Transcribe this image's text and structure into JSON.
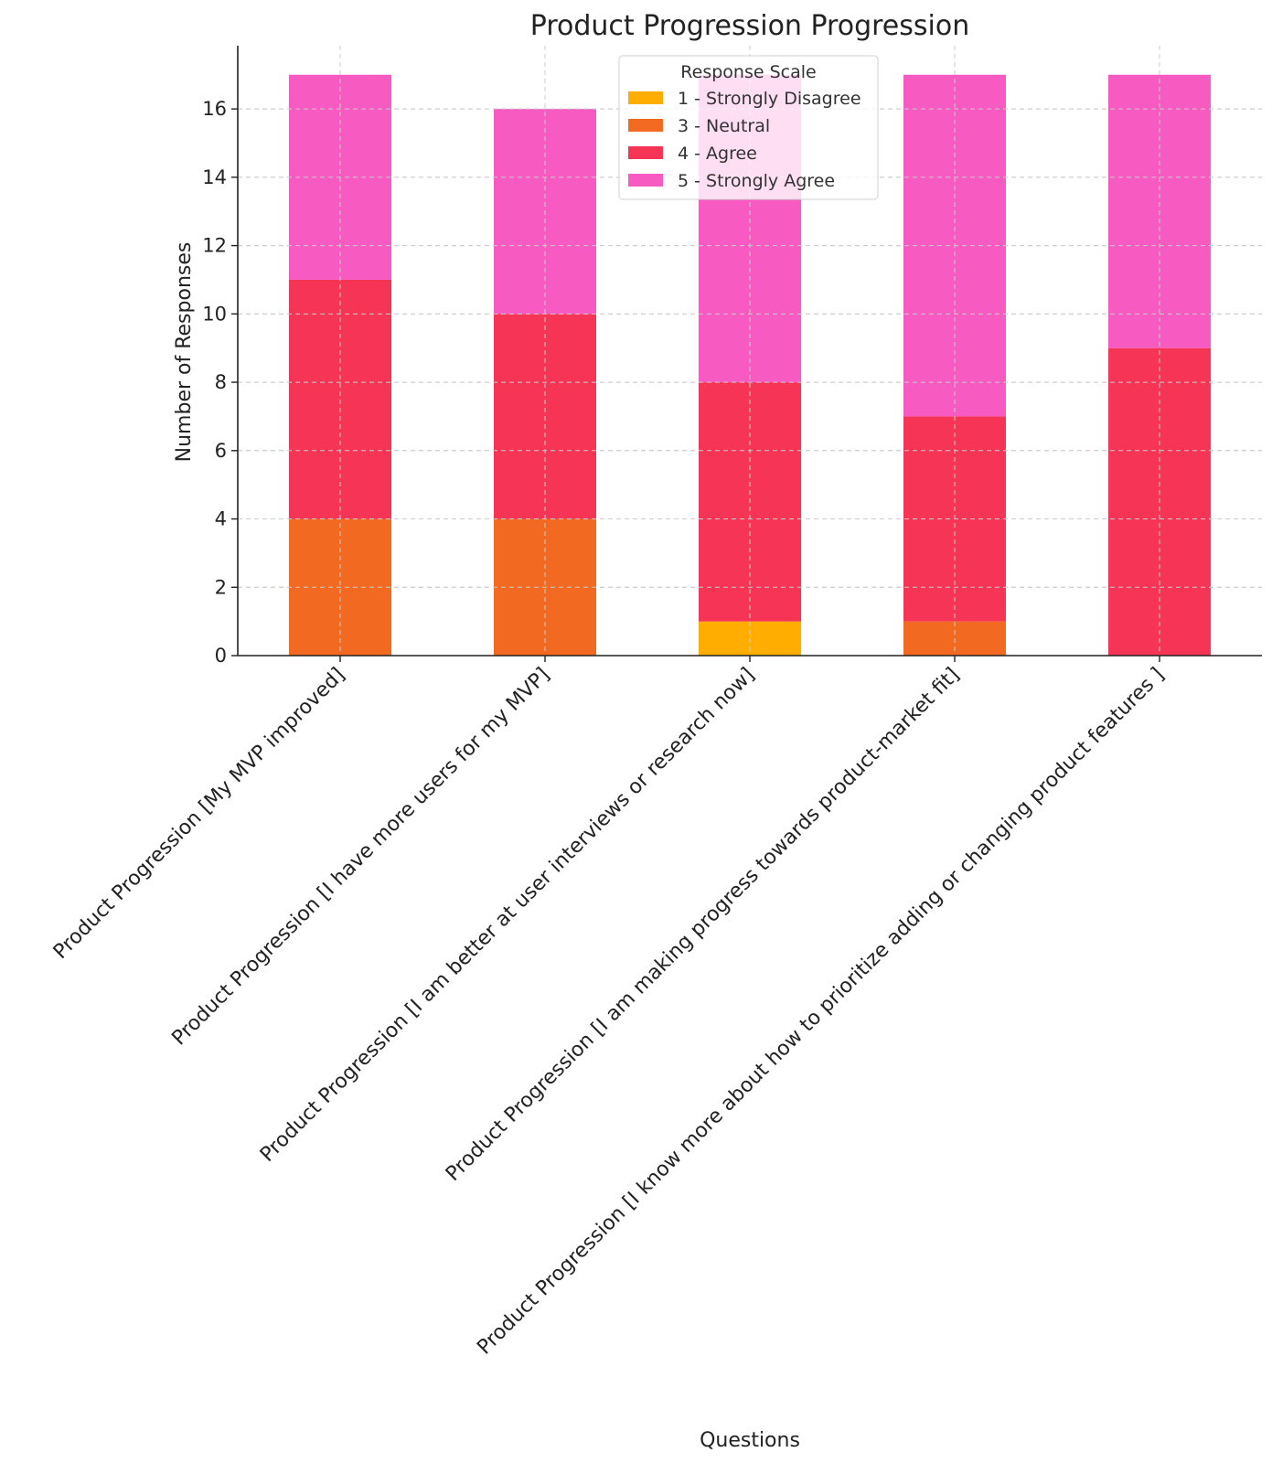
{
  "chart_data": {
    "type": "bar",
    "stacked": true,
    "title": "Product Progression Progression",
    "xlabel": "Questions",
    "ylabel": "Number of Responses",
    "ylim": [
      0,
      17.85
    ],
    "yticks": [
      0,
      2,
      4,
      6,
      8,
      10,
      12,
      14,
      16
    ],
    "grid": true,
    "legend": {
      "title": "Response Scale",
      "placement": "top-center"
    },
    "categories": [
      "Product Progression [My MVP improved]",
      "Product Progression [I have more users for my MVP]",
      "Product Progression [I am better at user interviews or research now]",
      "Product Progression [I am making progress towards product-market fit]",
      "Product Progression [I know more about how to prioritize adding or changing product features ]"
    ],
    "series": [
      {
        "name": "1 - Strongly Disagree",
        "color": "#FFAE00",
        "values": [
          0,
          0,
          1,
          0,
          0
        ]
      },
      {
        "name": "3 - Neutral",
        "color": "#F26A22",
        "values": [
          4,
          4,
          0,
          1,
          0
        ]
      },
      {
        "name": "4 - Agree",
        "color": "#F53456",
        "values": [
          7,
          6,
          7,
          6,
          9
        ]
      },
      {
        "name": "5 - Strongly Agree",
        "color": "#F75AC0",
        "values": [
          6,
          6,
          9,
          10,
          8
        ]
      }
    ]
  }
}
